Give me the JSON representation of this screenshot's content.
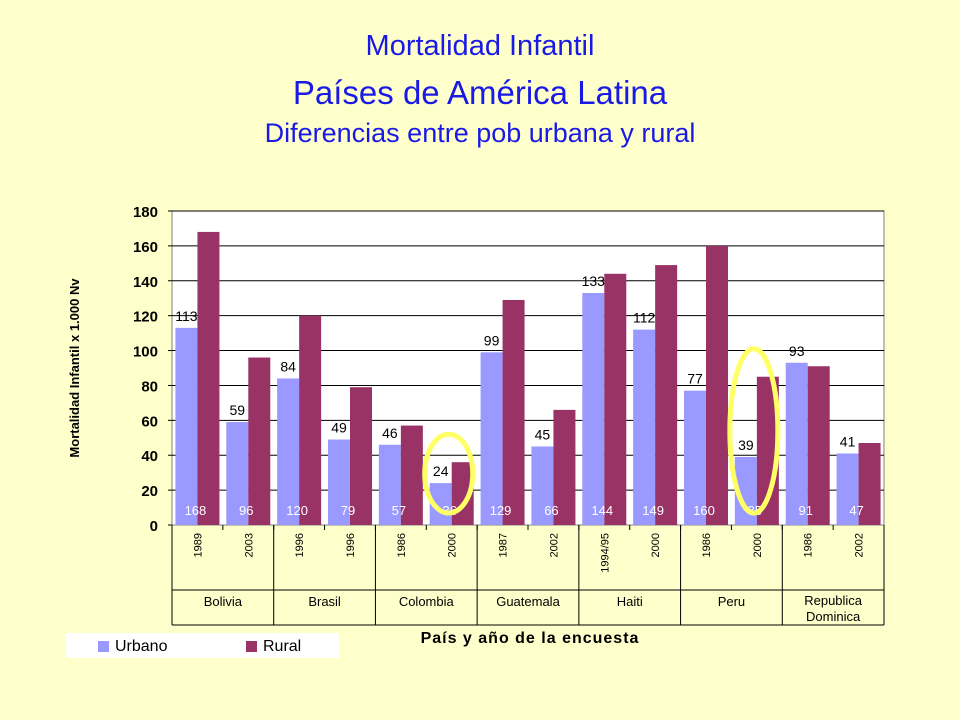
{
  "title": "Mortalidad Infantil",
  "subtitle": "Países de América Latina",
  "subtitle2": "Diferencias entre pob urbana y rural",
  "colors": {
    "urbano": "#9999FF",
    "rural": "#993366",
    "highlight": "#FFFF66",
    "background": "#FFFFCC"
  },
  "chart_data": {
    "type": "bar",
    "ylabel": "Mortalidad Infantil x 1.000 Nv",
    "xlabel": "País y año de la encuesta",
    "ylim": [
      0,
      180
    ],
    "yticks": [
      0,
      20,
      40,
      60,
      80,
      100,
      120,
      140,
      160,
      180
    ],
    "grid": true,
    "legend_position": "bottom-left",
    "categories": [
      "1989",
      "2003",
      "1996",
      "1996",
      "1986",
      "2000",
      "1987",
      "2002",
      "1994/95",
      "2000",
      "1986",
      "2000",
      "1986",
      "2002"
    ],
    "countries": [
      {
        "name": "Bolivia",
        "span": 2
      },
      {
        "name": "Brasil",
        "span": 2
      },
      {
        "name": "Colombia",
        "span": 2
      },
      {
        "name": "Guatemala",
        "span": 2
      },
      {
        "name": "Haiti",
        "span": 2
      },
      {
        "name": "Peru",
        "span": 2
      },
      {
        "name": "Republica\nDominica",
        "span": 2
      }
    ],
    "series": [
      {
        "name": "Urbano",
        "values": [
          113,
          59,
          84,
          49,
          46,
          24,
          99,
          45,
          133,
          112,
          77,
          39,
          93,
          41
        ]
      },
      {
        "name": "Rural",
        "values": [
          168,
          96,
          120,
          79,
          57,
          36,
          129,
          66,
          144,
          149,
          160,
          85,
          91,
          47
        ]
      }
    ],
    "highlighted_categories": [
      5,
      11
    ]
  }
}
